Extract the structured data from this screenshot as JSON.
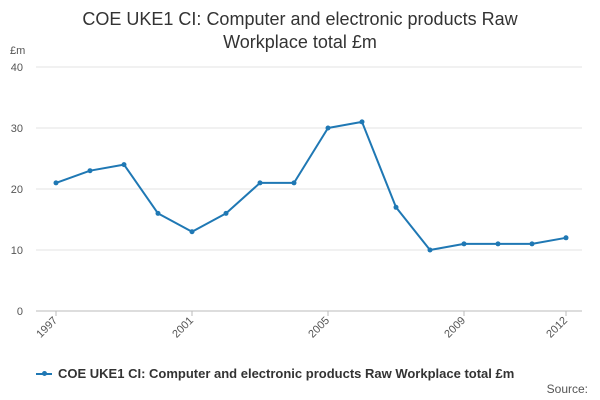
{
  "chart_data": {
    "type": "line",
    "title_lines": [
      "COE UKE1 CI: Computer and electronic products Raw",
      "Workplace total £m"
    ],
    "ylabel": "£m",
    "xlabel": "",
    "ylim": [
      0,
      40
    ],
    "yticks": [
      0,
      10,
      20,
      30,
      40
    ],
    "xticks": [
      1997,
      2001,
      2005,
      2009,
      2012
    ],
    "x": [
      1997,
      1998,
      1999,
      2000,
      2001,
      2002,
      2003,
      2004,
      2005,
      2006,
      2007,
      2008,
      2009,
      2010,
      2011,
      2012
    ],
    "series": [
      {
        "name": "COE UKE1 CI: Computer and electronic products Raw Workplace total £m",
        "color": "#1f78b4",
        "values": [
          21,
          23,
          24,
          16,
          13,
          16,
          21,
          21,
          30,
          31,
          17,
          10,
          11,
          11,
          11,
          12
        ]
      }
    ],
    "grid": "horizontal",
    "legend_position": "bottom-left"
  },
  "source_label": "Source:"
}
